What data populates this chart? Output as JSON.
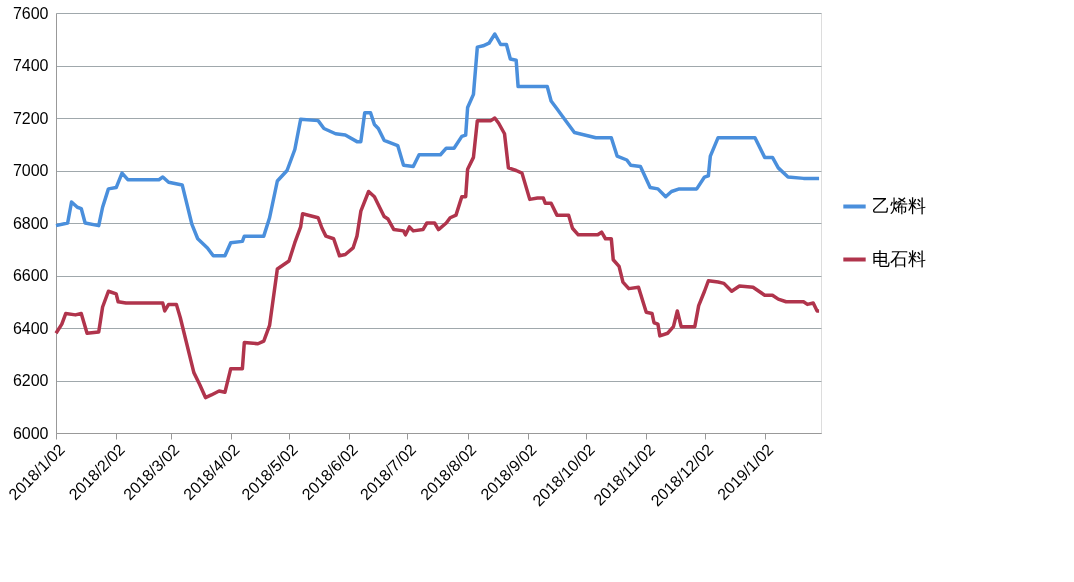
{
  "chart_data": {
    "type": "line",
    "xlim": [
      "2018-01-02",
      "2019-01-31"
    ],
    "xticks": [
      {
        "value": "2018-01-02",
        "label": "2018/1/02"
      },
      {
        "value": "2018-02-02",
        "label": "2018/2/02"
      },
      {
        "value": "2018-03-02",
        "label": "2018/3/02"
      },
      {
        "value": "2018-04-02",
        "label": "2018/4/02"
      },
      {
        "value": "2018-05-02",
        "label": "2018/5/02"
      },
      {
        "value": "2018-06-02",
        "label": "2018/6/02"
      },
      {
        "value": "2018-07-02",
        "label": "2018/7/02"
      },
      {
        "value": "2018-08-02",
        "label": "2018/8/02"
      },
      {
        "value": "2018-09-02",
        "label": "2018/9/02"
      },
      {
        "value": "2018-10-02",
        "label": "2018/10/02"
      },
      {
        "value": "2018-11-02",
        "label": "2018/11/02"
      },
      {
        "value": "2018-12-02",
        "label": "2018/12/02"
      },
      {
        "value": "2019-01-02",
        "label": "2019/1/02"
      }
    ],
    "ylim": [
      6000,
      7600
    ],
    "yticks": [
      6000,
      6200,
      6400,
      6600,
      6800,
      7000,
      7200,
      7400,
      7600
    ],
    "grid": "y",
    "legend": "right",
    "line_style": "solid",
    "marker": "none",
    "series": [
      {
        "name": "乙烯料",
        "color": "#4a8fdc",
        "x": [
          "2018-01-02",
          "2018-01-08",
          "2018-01-10",
          "2018-01-13",
          "2018-01-15",
          "2018-01-17",
          "2018-01-24",
          "2018-01-26",
          "2018-01-29",
          "2018-02-02",
          "2018-02-05",
          "2018-02-08",
          "2018-02-24",
          "2018-02-26",
          "2018-03-01",
          "2018-03-08",
          "2018-03-13",
          "2018-03-16",
          "2018-03-21",
          "2018-03-24",
          "2018-03-30",
          "2018-04-02",
          "2018-04-08",
          "2018-04-09",
          "2018-04-19",
          "2018-04-22",
          "2018-04-26",
          "2018-05-01",
          "2018-05-05",
          "2018-05-08",
          "2018-05-17",
          "2018-05-20",
          "2018-05-26",
          "2018-05-31",
          "2018-06-06",
          "2018-06-08",
          "2018-06-10",
          "2018-06-13",
          "2018-06-15",
          "2018-06-17",
          "2018-06-20",
          "2018-06-27",
          "2018-06-30",
          "2018-07-05",
          "2018-07-08",
          "2018-07-19",
          "2018-07-22",
          "2018-07-26",
          "2018-07-30",
          "2018-08-01",
          "2018-08-02",
          "2018-08-05",
          "2018-08-07",
          "2018-08-10",
          "2018-08-13",
          "2018-08-16",
          "2018-08-19",
          "2018-08-22",
          "2018-08-24",
          "2018-08-27",
          "2018-08-28",
          "2018-09-12",
          "2018-09-14",
          "2018-09-17",
          "2018-09-20",
          "2018-09-26",
          "2018-10-07",
          "2018-10-15",
          "2018-10-18",
          "2018-10-23",
          "2018-10-25",
          "2018-10-30",
          "2018-11-04",
          "2018-11-08",
          "2018-11-12",
          "2018-11-15",
          "2018-11-19",
          "2018-11-28",
          "2018-12-02",
          "2018-12-04",
          "2018-12-05",
          "2018-12-09",
          "2018-12-28",
          "2019-01-02",
          "2019-01-06",
          "2019-01-09",
          "2019-01-14",
          "2019-01-22",
          "2019-01-30"
        ],
        "values": [
          6790,
          6800,
          6880,
          6860,
          6855,
          6800,
          6790,
          6860,
          6930,
          6935,
          6990,
          6965,
          6965,
          6975,
          6955,
          6945,
          6795,
          6740,
          6705,
          6675,
          6675,
          6725,
          6730,
          6750,
          6750,
          6820,
          6960,
          7000,
          7080,
          7195,
          7190,
          7160,
          7140,
          7135,
          7110,
          7110,
          7220,
          7220,
          7175,
          7160,
          7115,
          7095,
          7020,
          7015,
          7060,
          7060,
          7085,
          7085,
          7130,
          7135,
          7240,
          7290,
          7470,
          7475,
          7485,
          7520,
          7480,
          7480,
          7425,
          7420,
          7320,
          7320,
          7265,
          7235,
          7205,
          7145,
          7125,
          7125,
          7055,
          7040,
          7020,
          7015,
          6935,
          6930,
          6900,
          6920,
          6930,
          6930,
          6975,
          6980,
          7055,
          7125,
          7125,
          7050,
          7050,
          7010,
          6975,
          6970,
          6970
        ]
      },
      {
        "name": "电石料",
        "color": "#b0344c",
        "x": [
          "2018-01-02",
          "2018-01-05",
          "2018-01-07",
          "2018-01-12",
          "2018-01-15",
          "2018-01-18",
          "2018-01-24",
          "2018-01-26",
          "2018-01-29",
          "2018-02-02",
          "2018-02-03",
          "2018-02-07",
          "2018-02-26",
          "2018-02-27",
          "2018-03-01",
          "2018-03-05",
          "2018-03-07",
          "2018-03-14",
          "2018-03-17",
          "2018-03-20",
          "2018-03-23",
          "2018-03-27",
          "2018-03-30",
          "2018-04-02",
          "2018-04-08",
          "2018-04-09",
          "2018-04-16",
          "2018-04-19",
          "2018-04-22",
          "2018-04-26",
          "2018-05-02",
          "2018-05-05",
          "2018-05-08",
          "2018-05-09",
          "2018-05-17",
          "2018-05-19",
          "2018-05-21",
          "2018-05-25",
          "2018-05-28",
          "2018-05-31",
          "2018-06-04",
          "2018-06-06",
          "2018-06-08",
          "2018-06-12",
          "2018-06-15",
          "2018-06-20",
          "2018-06-22",
          "2018-06-25",
          "2018-06-30",
          "2018-07-01",
          "2018-07-03",
          "2018-07-05",
          "2018-07-10",
          "2018-07-12",
          "2018-07-16",
          "2018-07-18",
          "2018-07-22",
          "2018-07-24",
          "2018-07-27",
          "2018-07-30",
          "2018-08-01",
          "2018-08-02",
          "2018-08-05",
          "2018-08-07",
          "2018-08-14",
          "2018-08-16",
          "2018-08-18",
          "2018-08-21",
          "2018-08-23",
          "2018-08-27",
          "2018-08-30",
          "2018-09-03",
          "2018-09-07",
          "2018-09-10",
          "2018-09-11",
          "2018-09-14",
          "2018-09-17",
          "2018-09-23",
          "2018-09-25",
          "2018-09-28",
          "2018-10-08",
          "2018-10-10",
          "2018-10-12",
          "2018-10-15",
          "2018-10-16",
          "2018-10-19",
          "2018-10-21",
          "2018-10-24",
          "2018-10-29",
          "2018-11-02",
          "2018-11-05",
          "2018-11-06",
          "2018-11-08",
          "2018-11-09",
          "2018-11-13",
          "2018-11-16",
          "2018-11-18",
          "2018-11-20",
          "2018-11-27",
          "2018-11-29",
          "2018-12-02",
          "2018-12-04",
          "2018-12-09",
          "2018-12-12",
          "2018-12-16",
          "2018-12-20",
          "2018-12-27",
          "2019-01-02",
          "2019-01-06",
          "2019-01-09",
          "2019-01-13",
          "2019-01-22",
          "2019-01-24",
          "2019-01-27",
          "2019-01-29",
          "2019-01-30"
        ],
        "values": [
          6380,
          6415,
          6455,
          6450,
          6455,
          6380,
          6385,
          6480,
          6540,
          6530,
          6500,
          6495,
          6495,
          6465,
          6490,
          6490,
          6440,
          6230,
          6185,
          6135,
          6145,
          6160,
          6155,
          6245,
          6245,
          6345,
          6340,
          6350,
          6410,
          6625,
          6655,
          6725,
          6785,
          6835,
          6820,
          6780,
          6750,
          6740,
          6675,
          6680,
          6705,
          6750,
          6845,
          6920,
          6900,
          6825,
          6815,
          6775,
          6770,
          6755,
          6785,
          6770,
          6775,
          6800,
          6800,
          6775,
          6800,
          6820,
          6830,
          6900,
          6900,
          7005,
          7050,
          7190,
          7190,
          7200,
          7180,
          7140,
          7010,
          7000,
          6990,
          6890,
          6895,
          6895,
          6875,
          6875,
          6830,
          6830,
          6780,
          6755,
          6755,
          6765,
          6740,
          6740,
          6660,
          6635,
          6575,
          6550,
          6555,
          6460,
          6455,
          6420,
          6415,
          6370,
          6380,
          6405,
          6465,
          6405,
          6405,
          6485,
          6540,
          6580,
          6575,
          6570,
          6540,
          6560,
          6555,
          6525,
          6525,
          6510,
          6500,
          6500,
          6490,
          6495,
          6465,
          6465
        ]
      }
    ]
  }
}
